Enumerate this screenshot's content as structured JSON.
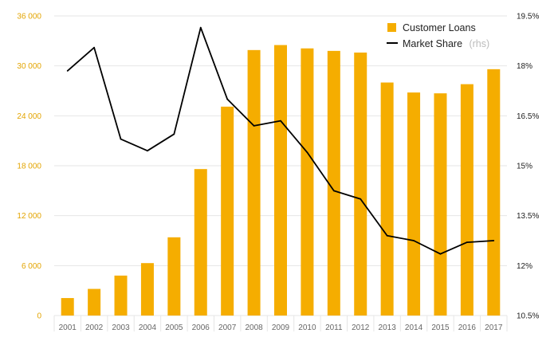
{
  "chart_data": {
    "type": "bar",
    "title": "",
    "xlabel": "",
    "ylabel": "",
    "categories": [
      "2001",
      "2002",
      "2003",
      "2004",
      "2005",
      "2006",
      "2007",
      "2008",
      "2009",
      "2010",
      "2011",
      "2012",
      "2013",
      "2014",
      "2015",
      "2016",
      "2017"
    ],
    "series": [
      {
        "name": "Customer Loans",
        "type": "bar",
        "axis": "left",
        "color": "#f5ad00",
        "values": [
          2100,
          3200,
          4800,
          6300,
          9400,
          17600,
          25100,
          31900,
          32500,
          32100,
          31800,
          31600,
          28000,
          26800,
          26700,
          27800,
          29600
        ]
      },
      {
        "name": "Market Share",
        "suffix": "(rhs)",
        "type": "line",
        "axis": "right",
        "color": "#000000",
        "values": [
          17.85,
          18.55,
          15.8,
          15.45,
          15.95,
          19.15,
          17.0,
          16.2,
          16.35,
          15.4,
          14.25,
          14.0,
          12.9,
          12.75,
          12.35,
          12.7,
          12.75
        ]
      }
    ],
    "ylim_left": [
      0,
      36000
    ],
    "ylim_right": [
      10.5,
      19.5
    ],
    "left_ticks": [
      "0",
      "6 000",
      "12 000",
      "18 000",
      "24 000",
      "30 000",
      "36 000"
    ],
    "right_ticks": [
      "10.5%",
      "12%",
      "13.5%",
      "15%",
      "16.5%",
      "18%",
      "19.5%"
    ],
    "grid": true,
    "legend_position": "top-right"
  },
  "colors": {
    "bar": "#f5ad00",
    "line": "#000000",
    "grid": "#e6e6e6",
    "left_tick_text": "#e3a400"
  }
}
